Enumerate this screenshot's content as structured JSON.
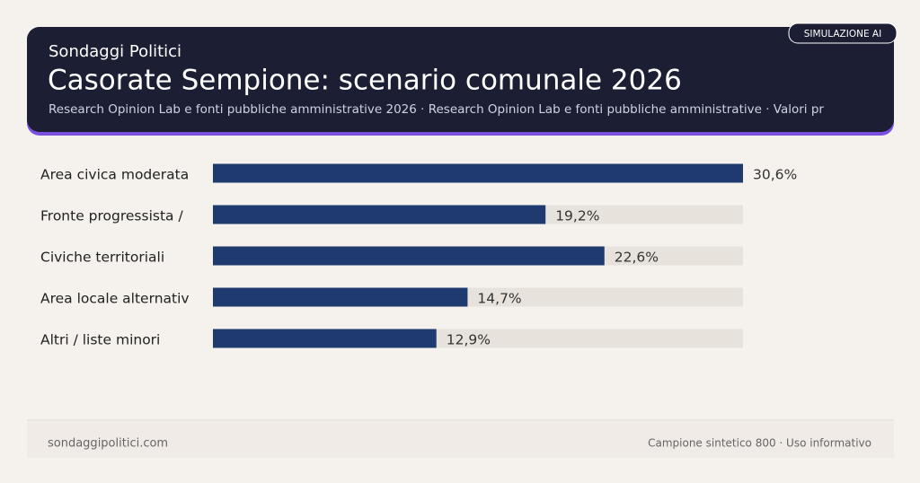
{
  "header": {
    "brand": "Sondaggi Politici",
    "badge": "SIMULAZIONE AI",
    "title": "Casorate Sempione: scenario comunale 2026",
    "subtitle": "Research Opinion Lab e fonti pubbliche amministrative 2026 · Research Opinion Lab e fonti pubbliche amministrative · Valori pr"
  },
  "chart_data": {
    "type": "bar",
    "orientation": "horizontal",
    "categories": [
      "Area civica moderata",
      "Fronte progressista /",
      "Civiche territoriali",
      "Area locale alternativ",
      "Altri / liste minori"
    ],
    "values": [
      30.6,
      19.2,
      22.6,
      14.7,
      12.9
    ],
    "value_labels": [
      "30,6%",
      "19,2%",
      "22,6%",
      "14,7%",
      "12,9%"
    ],
    "color": "#1f3a6e"
  },
  "footer": {
    "left": "sondaggipolitici.com",
    "right": "Campione sintetico 800 · Uso informativo"
  }
}
